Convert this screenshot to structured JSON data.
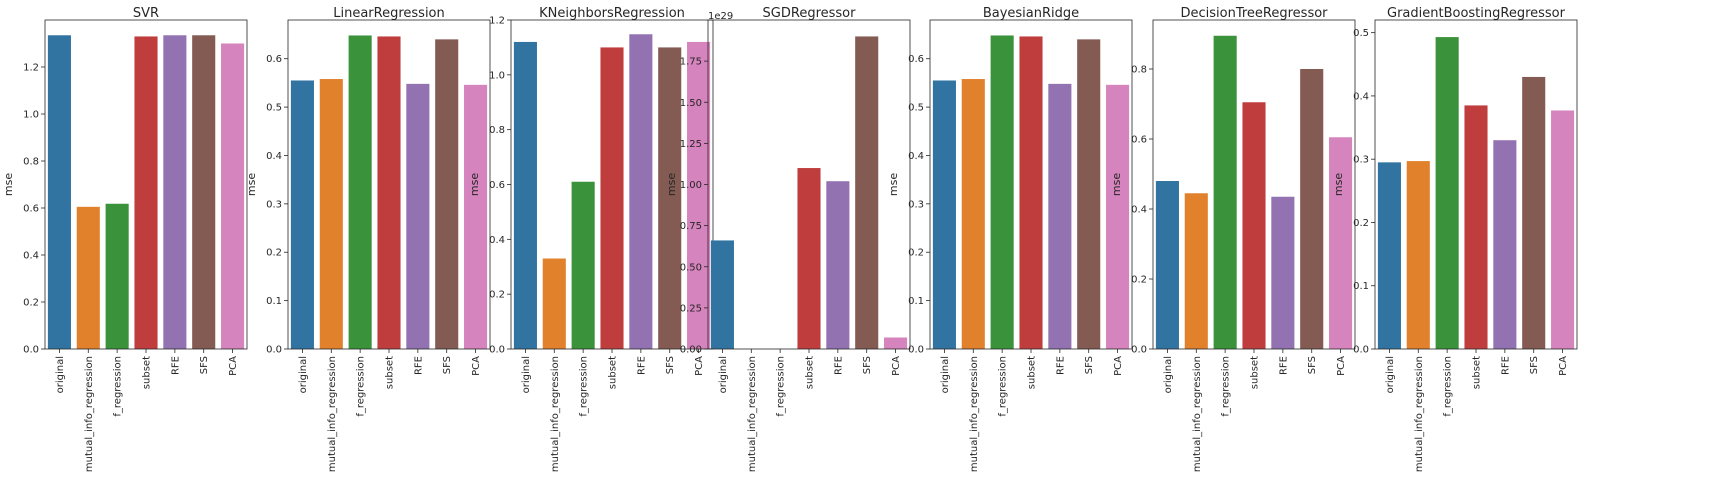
{
  "chart_data": [
    {
      "type": "bar",
      "title": "SVR",
      "ylabel": "mse",
      "categories": [
        "original",
        "mutual_info_regression",
        "f_regression",
        "subset",
        "RFE",
        "SFS",
        "PCA"
      ],
      "values": [
        1.335,
        0.605,
        0.618,
        1.33,
        1.335,
        1.335,
        1.3
      ],
      "ylim": [
        0,
        1.4
      ],
      "yticks": [
        0.0,
        0.2,
        0.4,
        0.6,
        0.8,
        1.0,
        1.2
      ],
      "ytick_labels": [
        "0.0",
        "0.2",
        "0.4",
        "0.6",
        "0.8",
        "1.0",
        "1.2"
      ],
      "offset_text": ""
    },
    {
      "type": "bar",
      "title": "LinearRegression",
      "ylabel": "mse",
      "categories": [
        "original",
        "mutual_info_regression",
        "f_regression",
        "subset",
        "RFE",
        "SFS",
        "PCA"
      ],
      "values": [
        0.555,
        0.558,
        0.648,
        0.646,
        0.548,
        0.64,
        0.546
      ],
      "ylim": [
        0,
        0.68
      ],
      "yticks": [
        0.0,
        0.1,
        0.2,
        0.3,
        0.4,
        0.5,
        0.6
      ],
      "ytick_labels": [
        "0.0",
        "0.1",
        "0.2",
        "0.3",
        "0.4",
        "0.5",
        "0.6"
      ],
      "offset_text": ""
    },
    {
      "type": "bar",
      "title": "KNeighborsRegression",
      "ylabel": "mse",
      "categories": [
        "original",
        "mutual_info_regression",
        "f_regression",
        "subset",
        "RFE",
        "SFS",
        "PCA"
      ],
      "values": [
        1.12,
        0.33,
        0.61,
        1.1,
        1.148,
        1.1,
        1.12
      ],
      "ylim": [
        0,
        1.2
      ],
      "yticks": [
        0.0,
        0.2,
        0.4,
        0.6,
        0.8,
        1.0,
        1.2
      ],
      "ytick_labels": [
        "0.0",
        "0.2",
        "0.4",
        "0.6",
        "0.8",
        "1.0",
        "1.2"
      ],
      "offset_text": ""
    },
    {
      "type": "bar",
      "title": "SGDRegressor",
      "ylabel": "mse",
      "categories": [
        "original",
        "mutual_info_regression",
        "f_regression",
        "subset",
        "RFE",
        "SFS",
        "PCA"
      ],
      "values": [
        0.66,
        0.0,
        0.0,
        1.1,
        1.02,
        1.9,
        0.07
      ],
      "ylim": [
        0,
        2.0
      ],
      "yticks": [
        0.0,
        0.25,
        0.5,
        0.75,
        1.0,
        1.25,
        1.5,
        1.75
      ],
      "ytick_labels": [
        "0.00",
        "0.25",
        "0.50",
        "0.75",
        "1.00",
        "1.25",
        "1.50",
        "1.75"
      ],
      "offset_text": "1e29"
    },
    {
      "type": "bar",
      "title": "BayesianRidge",
      "ylabel": "mse",
      "categories": [
        "original",
        "mutual_info_regression",
        "f_regression",
        "subset",
        "RFE",
        "SFS",
        "PCA"
      ],
      "values": [
        0.555,
        0.558,
        0.648,
        0.646,
        0.548,
        0.64,
        0.546
      ],
      "ylim": [
        0,
        0.68
      ],
      "yticks": [
        0.0,
        0.1,
        0.2,
        0.3,
        0.4,
        0.5,
        0.6
      ],
      "ytick_labels": [
        "0.0",
        "0.1",
        "0.2",
        "0.3",
        "0.4",
        "0.5",
        "0.6"
      ],
      "offset_text": ""
    },
    {
      "type": "bar",
      "title": "DecisionTreeRegressor",
      "ylabel": "mse",
      "categories": [
        "original",
        "mutual_info_regression",
        "f_regression",
        "subset",
        "RFE",
        "SFS",
        "PCA"
      ],
      "values": [
        0.48,
        0.445,
        0.895,
        0.705,
        0.435,
        0.8,
        0.605
      ],
      "ylim": [
        0,
        0.94
      ],
      "yticks": [
        0.0,
        0.2,
        0.4,
        0.6,
        0.8
      ],
      "ytick_labels": [
        "0.0",
        "0.2",
        "0.4",
        "0.6",
        "0.8"
      ],
      "offset_text": ""
    },
    {
      "type": "bar",
      "title": "GradientBoostingRegressor",
      "ylabel": "mse",
      "categories": [
        "original",
        "mutual_info_regression",
        "f_regression",
        "subset",
        "RFE",
        "SFS",
        "PCA"
      ],
      "values": [
        0.295,
        0.297,
        0.493,
        0.385,
        0.33,
        0.43,
        0.377
      ],
      "ylim": [
        0,
        0.52
      ],
      "yticks": [
        0.0,
        0.1,
        0.2,
        0.3,
        0.4,
        0.5
      ],
      "ytick_labels": [
        "0.0",
        "0.1",
        "0.2",
        "0.3",
        "0.4",
        "0.5"
      ],
      "offset_text": ""
    }
  ],
  "colors": [
    "#3274a1",
    "#e1812c",
    "#3a923a",
    "#c03d3e",
    "#9372b2",
    "#845b53",
    "#d684bd"
  ]
}
